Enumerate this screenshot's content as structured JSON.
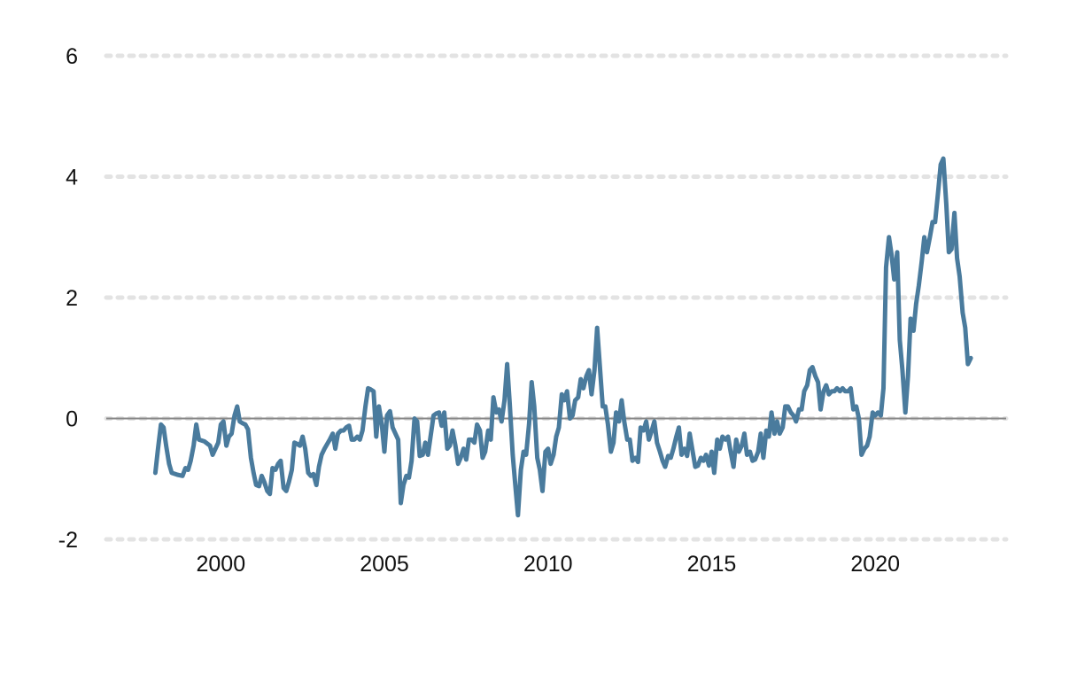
{
  "chart_data": {
    "type": "line",
    "title": "",
    "xlabel": "",
    "ylabel": "",
    "xlim": [
      1996.5,
      2024.0
    ],
    "ylim": [
      -2,
      6
    ],
    "y_ticks": [
      -2,
      0,
      2,
      4,
      6
    ],
    "y_tick_labels": [
      "-2",
      "0",
      "2",
      "4",
      "6"
    ],
    "x_ticks": [
      2000,
      2005,
      2010,
      2015,
      2020
    ],
    "x_tick_labels": [
      "2000",
      "2005",
      "2010",
      "2015",
      "2020"
    ],
    "grid": "horizontal dotted",
    "reference_line": 0,
    "colors": {
      "line": "#4a7b9d",
      "grid": "#e3e3e3",
      "zero_line": "#888888",
      "text": "#111111"
    },
    "series": [
      {
        "points": [
          [
            1998.0,
            -0.9
          ],
          [
            1998.08,
            -0.5
          ],
          [
            1998.17,
            -0.1
          ],
          [
            1998.25,
            -0.15
          ],
          [
            1998.33,
            -0.45
          ],
          [
            1998.42,
            -0.75
          ],
          [
            1998.5,
            -0.9
          ],
          [
            1998.67,
            -0.93
          ],
          [
            1998.83,
            -0.95
          ],
          [
            1998.92,
            -0.82
          ],
          [
            1999.0,
            -0.85
          ],
          [
            1999.08,
            -0.7
          ],
          [
            1999.17,
            -0.45
          ],
          [
            1999.25,
            -0.1
          ],
          [
            1999.33,
            -0.35
          ],
          [
            1999.5,
            -0.38
          ],
          [
            1999.67,
            -0.45
          ],
          [
            1999.75,
            -0.6
          ],
          [
            1999.92,
            -0.4
          ],
          [
            2000.0,
            -0.1
          ],
          [
            2000.08,
            -0.05
          ],
          [
            2000.17,
            -0.45
          ],
          [
            2000.25,
            -0.3
          ],
          [
            2000.33,
            -0.25
          ],
          [
            2000.42,
            0.05
          ],
          [
            2000.5,
            0.2
          ],
          [
            2000.58,
            -0.05
          ],
          [
            2000.67,
            -0.08
          ],
          [
            2000.75,
            -0.1
          ],
          [
            2000.83,
            -0.18
          ],
          [
            2000.92,
            -0.65
          ],
          [
            2001.0,
            -0.9
          ],
          [
            2001.08,
            -1.1
          ],
          [
            2001.17,
            -1.12
          ],
          [
            2001.25,
            -0.95
          ],
          [
            2001.33,
            -1.05
          ],
          [
            2001.42,
            -1.2
          ],
          [
            2001.5,
            -1.25
          ],
          [
            2001.58,
            -0.82
          ],
          [
            2001.67,
            -0.85
          ],
          [
            2001.75,
            -0.75
          ],
          [
            2001.83,
            -0.7
          ],
          [
            2001.92,
            -1.15
          ],
          [
            2002.0,
            -1.2
          ],
          [
            2002.08,
            -1.05
          ],
          [
            2002.17,
            -0.85
          ],
          [
            2002.25,
            -0.4
          ],
          [
            2002.33,
            -0.42
          ],
          [
            2002.42,
            -0.45
          ],
          [
            2002.5,
            -0.3
          ],
          [
            2002.58,
            -0.5
          ],
          [
            2002.67,
            -0.9
          ],
          [
            2002.75,
            -0.95
          ],
          [
            2002.83,
            -0.92
          ],
          [
            2002.92,
            -1.1
          ],
          [
            2003.0,
            -0.8
          ],
          [
            2003.08,
            -0.6
          ],
          [
            2003.17,
            -0.5
          ],
          [
            2003.33,
            -0.35
          ],
          [
            2003.42,
            -0.25
          ],
          [
            2003.5,
            -0.5
          ],
          [
            2003.58,
            -0.25
          ],
          [
            2003.67,
            -0.2
          ],
          [
            2003.75,
            -0.2
          ],
          [
            2003.83,
            -0.15
          ],
          [
            2003.92,
            -0.12
          ],
          [
            2004.0,
            -0.35
          ],
          [
            2004.08,
            -0.35
          ],
          [
            2004.17,
            -0.3
          ],
          [
            2004.25,
            -0.35
          ],
          [
            2004.33,
            -0.2
          ],
          [
            2004.42,
            0.2
          ],
          [
            2004.5,
            0.5
          ],
          [
            2004.58,
            0.48
          ],
          [
            2004.67,
            0.45
          ],
          [
            2004.75,
            -0.3
          ],
          [
            2004.83,
            0.2
          ],
          [
            2004.92,
            -0.1
          ],
          [
            2005.0,
            -0.55
          ],
          [
            2005.08,
            0.05
          ],
          [
            2005.17,
            0.12
          ],
          [
            2005.25,
            -0.15
          ],
          [
            2005.42,
            -0.35
          ],
          [
            2005.5,
            -1.4
          ],
          [
            2005.58,
            -1.1
          ],
          [
            2005.67,
            -0.95
          ],
          [
            2005.75,
            -0.98
          ],
          [
            2005.83,
            -0.7
          ],
          [
            2005.92,
            0.0
          ],
          [
            2006.0,
            -0.05
          ],
          [
            2006.08,
            -0.62
          ],
          [
            2006.17,
            -0.6
          ],
          [
            2006.25,
            -0.4
          ],
          [
            2006.33,
            -0.6
          ],
          [
            2006.5,
            0.05
          ],
          [
            2006.58,
            0.08
          ],
          [
            2006.67,
            0.1
          ],
          [
            2006.75,
            -0.12
          ],
          [
            2006.83,
            0.1
          ],
          [
            2006.92,
            -0.5
          ],
          [
            2007.0,
            -0.45
          ],
          [
            2007.08,
            -0.2
          ],
          [
            2007.17,
            -0.45
          ],
          [
            2007.25,
            -0.75
          ],
          [
            2007.33,
            -0.65
          ],
          [
            2007.42,
            -0.5
          ],
          [
            2007.5,
            -0.68
          ],
          [
            2007.58,
            -0.35
          ],
          [
            2007.67,
            -0.35
          ],
          [
            2007.75,
            -0.4
          ],
          [
            2007.83,
            -0.1
          ],
          [
            2007.92,
            -0.2
          ],
          [
            2008.0,
            -0.65
          ],
          [
            2008.08,
            -0.55
          ],
          [
            2008.17,
            -0.2
          ],
          [
            2008.25,
            -0.35
          ],
          [
            2008.33,
            0.35
          ],
          [
            2008.42,
            0.1
          ],
          [
            2008.5,
            0.15
          ],
          [
            2008.58,
            -0.05
          ],
          [
            2008.67,
            0.3
          ],
          [
            2008.75,
            0.9
          ],
          [
            2008.83,
            0.25
          ],
          [
            2008.92,
            -0.6
          ],
          [
            2009.0,
            -1.1
          ],
          [
            2009.08,
            -1.6
          ],
          [
            2009.17,
            -0.85
          ],
          [
            2009.25,
            -0.55
          ],
          [
            2009.33,
            -0.6
          ],
          [
            2009.42,
            -0.1
          ],
          [
            2009.5,
            0.6
          ],
          [
            2009.58,
            0.2
          ],
          [
            2009.67,
            -0.65
          ],
          [
            2009.75,
            -0.85
          ],
          [
            2009.83,
            -1.2
          ],
          [
            2009.92,
            -0.55
          ],
          [
            2010.0,
            -0.5
          ],
          [
            2010.08,
            -0.75
          ],
          [
            2010.17,
            -0.6
          ],
          [
            2010.25,
            -0.3
          ],
          [
            2010.33,
            -0.15
          ],
          [
            2010.42,
            0.4
          ],
          [
            2010.5,
            0.3
          ],
          [
            2010.58,
            0.45
          ],
          [
            2010.67,
            0.0
          ],
          [
            2010.75,
            0.05
          ],
          [
            2010.83,
            0.3
          ],
          [
            2010.92,
            0.35
          ],
          [
            2011.0,
            0.65
          ],
          [
            2011.08,
            0.5
          ],
          [
            2011.17,
            0.7
          ],
          [
            2011.25,
            0.8
          ],
          [
            2011.33,
            0.4
          ],
          [
            2011.42,
            0.8
          ],
          [
            2011.5,
            1.5
          ],
          [
            2011.58,
            0.9
          ],
          [
            2011.67,
            0.2
          ],
          [
            2011.75,
            0.2
          ],
          [
            2011.83,
            -0.1
          ],
          [
            2011.92,
            -0.55
          ],
          [
            2012.0,
            -0.4
          ],
          [
            2012.08,
            0.1
          ],
          [
            2012.17,
            -0.05
          ],
          [
            2012.25,
            0.3
          ],
          [
            2012.33,
            -0.05
          ],
          [
            2012.42,
            -0.35
          ],
          [
            2012.5,
            -0.35
          ],
          [
            2012.58,
            -0.7
          ],
          [
            2012.67,
            -0.65
          ],
          [
            2012.75,
            -0.72
          ],
          [
            2012.83,
            -0.15
          ],
          [
            2012.92,
            -0.2
          ],
          [
            2013.0,
            -0.05
          ],
          [
            2013.08,
            -0.35
          ],
          [
            2013.17,
            -0.2
          ],
          [
            2013.25,
            -0.05
          ],
          [
            2013.33,
            -0.4
          ],
          [
            2013.42,
            -0.55
          ],
          [
            2013.5,
            -0.7
          ],
          [
            2013.58,
            -0.8
          ],
          [
            2013.67,
            -0.62
          ],
          [
            2013.75,
            -0.65
          ],
          [
            2013.83,
            -0.5
          ],
          [
            2013.92,
            -0.3
          ],
          [
            2014.0,
            -0.15
          ],
          [
            2014.08,
            -0.6
          ],
          [
            2014.17,
            -0.5
          ],
          [
            2014.25,
            -0.62
          ],
          [
            2014.33,
            -0.25
          ],
          [
            2014.42,
            -0.55
          ],
          [
            2014.5,
            -0.8
          ],
          [
            2014.58,
            -0.78
          ],
          [
            2014.67,
            -0.65
          ],
          [
            2014.75,
            -0.7
          ],
          [
            2014.83,
            -0.6
          ],
          [
            2014.92,
            -0.78
          ],
          [
            2015.0,
            -0.55
          ],
          [
            2015.08,
            -0.9
          ],
          [
            2015.17,
            -0.35
          ],
          [
            2015.25,
            -0.5
          ],
          [
            2015.33,
            -0.3
          ],
          [
            2015.42,
            -0.35
          ],
          [
            2015.5,
            -0.3
          ],
          [
            2015.58,
            -0.55
          ],
          [
            2015.67,
            -0.8
          ],
          [
            2015.75,
            -0.35
          ],
          [
            2015.83,
            -0.55
          ],
          [
            2015.92,
            -0.45
          ],
          [
            2016.0,
            -0.25
          ],
          [
            2016.08,
            -0.6
          ],
          [
            2016.17,
            -0.55
          ],
          [
            2016.25,
            -0.7
          ],
          [
            2016.33,
            -0.68
          ],
          [
            2016.42,
            -0.55
          ],
          [
            2016.5,
            -0.25
          ],
          [
            2016.58,
            -0.65
          ],
          [
            2016.67,
            -0.2
          ],
          [
            2016.75,
            -0.3
          ],
          [
            2016.83,
            0.1
          ],
          [
            2016.92,
            -0.25
          ],
          [
            2017.0,
            -0.05
          ],
          [
            2017.08,
            -0.25
          ],
          [
            2017.17,
            -0.15
          ],
          [
            2017.25,
            0.2
          ],
          [
            2017.33,
            0.2
          ],
          [
            2017.42,
            0.1
          ],
          [
            2017.5,
            0.05
          ],
          [
            2017.58,
            -0.05
          ],
          [
            2017.67,
            0.15
          ],
          [
            2017.75,
            0.15
          ],
          [
            2017.83,
            0.45
          ],
          [
            2017.92,
            0.55
          ],
          [
            2018.0,
            0.8
          ],
          [
            2018.08,
            0.85
          ],
          [
            2018.17,
            0.7
          ],
          [
            2018.25,
            0.6
          ],
          [
            2018.33,
            0.15
          ],
          [
            2018.42,
            0.45
          ],
          [
            2018.5,
            0.55
          ],
          [
            2018.58,
            0.4
          ],
          [
            2018.67,
            0.45
          ],
          [
            2018.75,
            0.45
          ],
          [
            2018.83,
            0.5
          ],
          [
            2018.92,
            0.45
          ],
          [
            2019.0,
            0.5
          ],
          [
            2019.08,
            0.45
          ],
          [
            2019.17,
            0.45
          ],
          [
            2019.25,
            0.5
          ],
          [
            2019.33,
            0.15
          ],
          [
            2019.42,
            0.2
          ],
          [
            2019.5,
            0.0
          ],
          [
            2019.58,
            -0.6
          ],
          [
            2019.67,
            -0.5
          ],
          [
            2019.75,
            -0.45
          ],
          [
            2019.83,
            -0.3
          ],
          [
            2019.92,
            0.1
          ],
          [
            2020.0,
            0.05
          ],
          [
            2020.08,
            0.1
          ],
          [
            2020.17,
            0.05
          ],
          [
            2020.25,
            0.5
          ],
          [
            2020.33,
            2.5
          ],
          [
            2020.42,
            3.0
          ],
          [
            2020.5,
            2.7
          ],
          [
            2020.58,
            2.3
          ],
          [
            2020.67,
            2.75
          ],
          [
            2020.75,
            1.3
          ],
          [
            2020.83,
            0.8
          ],
          [
            2020.92,
            0.1
          ],
          [
            2021.0,
            0.7
          ],
          [
            2021.08,
            1.65
          ],
          [
            2021.17,
            1.45
          ],
          [
            2021.25,
            1.9
          ],
          [
            2021.33,
            2.2
          ],
          [
            2021.42,
            2.6
          ],
          [
            2021.5,
            3.0
          ],
          [
            2021.58,
            2.75
          ],
          [
            2021.67,
            3.0
          ],
          [
            2021.75,
            3.25
          ],
          [
            2021.83,
            3.25
          ],
          [
            2021.92,
            3.75
          ],
          [
            2022.0,
            4.2
          ],
          [
            2022.08,
            4.3
          ],
          [
            2022.17,
            3.55
          ],
          [
            2022.25,
            2.75
          ],
          [
            2022.33,
            2.8
          ],
          [
            2022.42,
            3.4
          ],
          [
            2022.5,
            2.65
          ],
          [
            2022.58,
            2.35
          ],
          [
            2022.67,
            1.75
          ],
          [
            2022.75,
            1.5
          ],
          [
            2022.83,
            0.9
          ],
          [
            2022.92,
            1.0
          ]
        ]
      }
    ]
  }
}
